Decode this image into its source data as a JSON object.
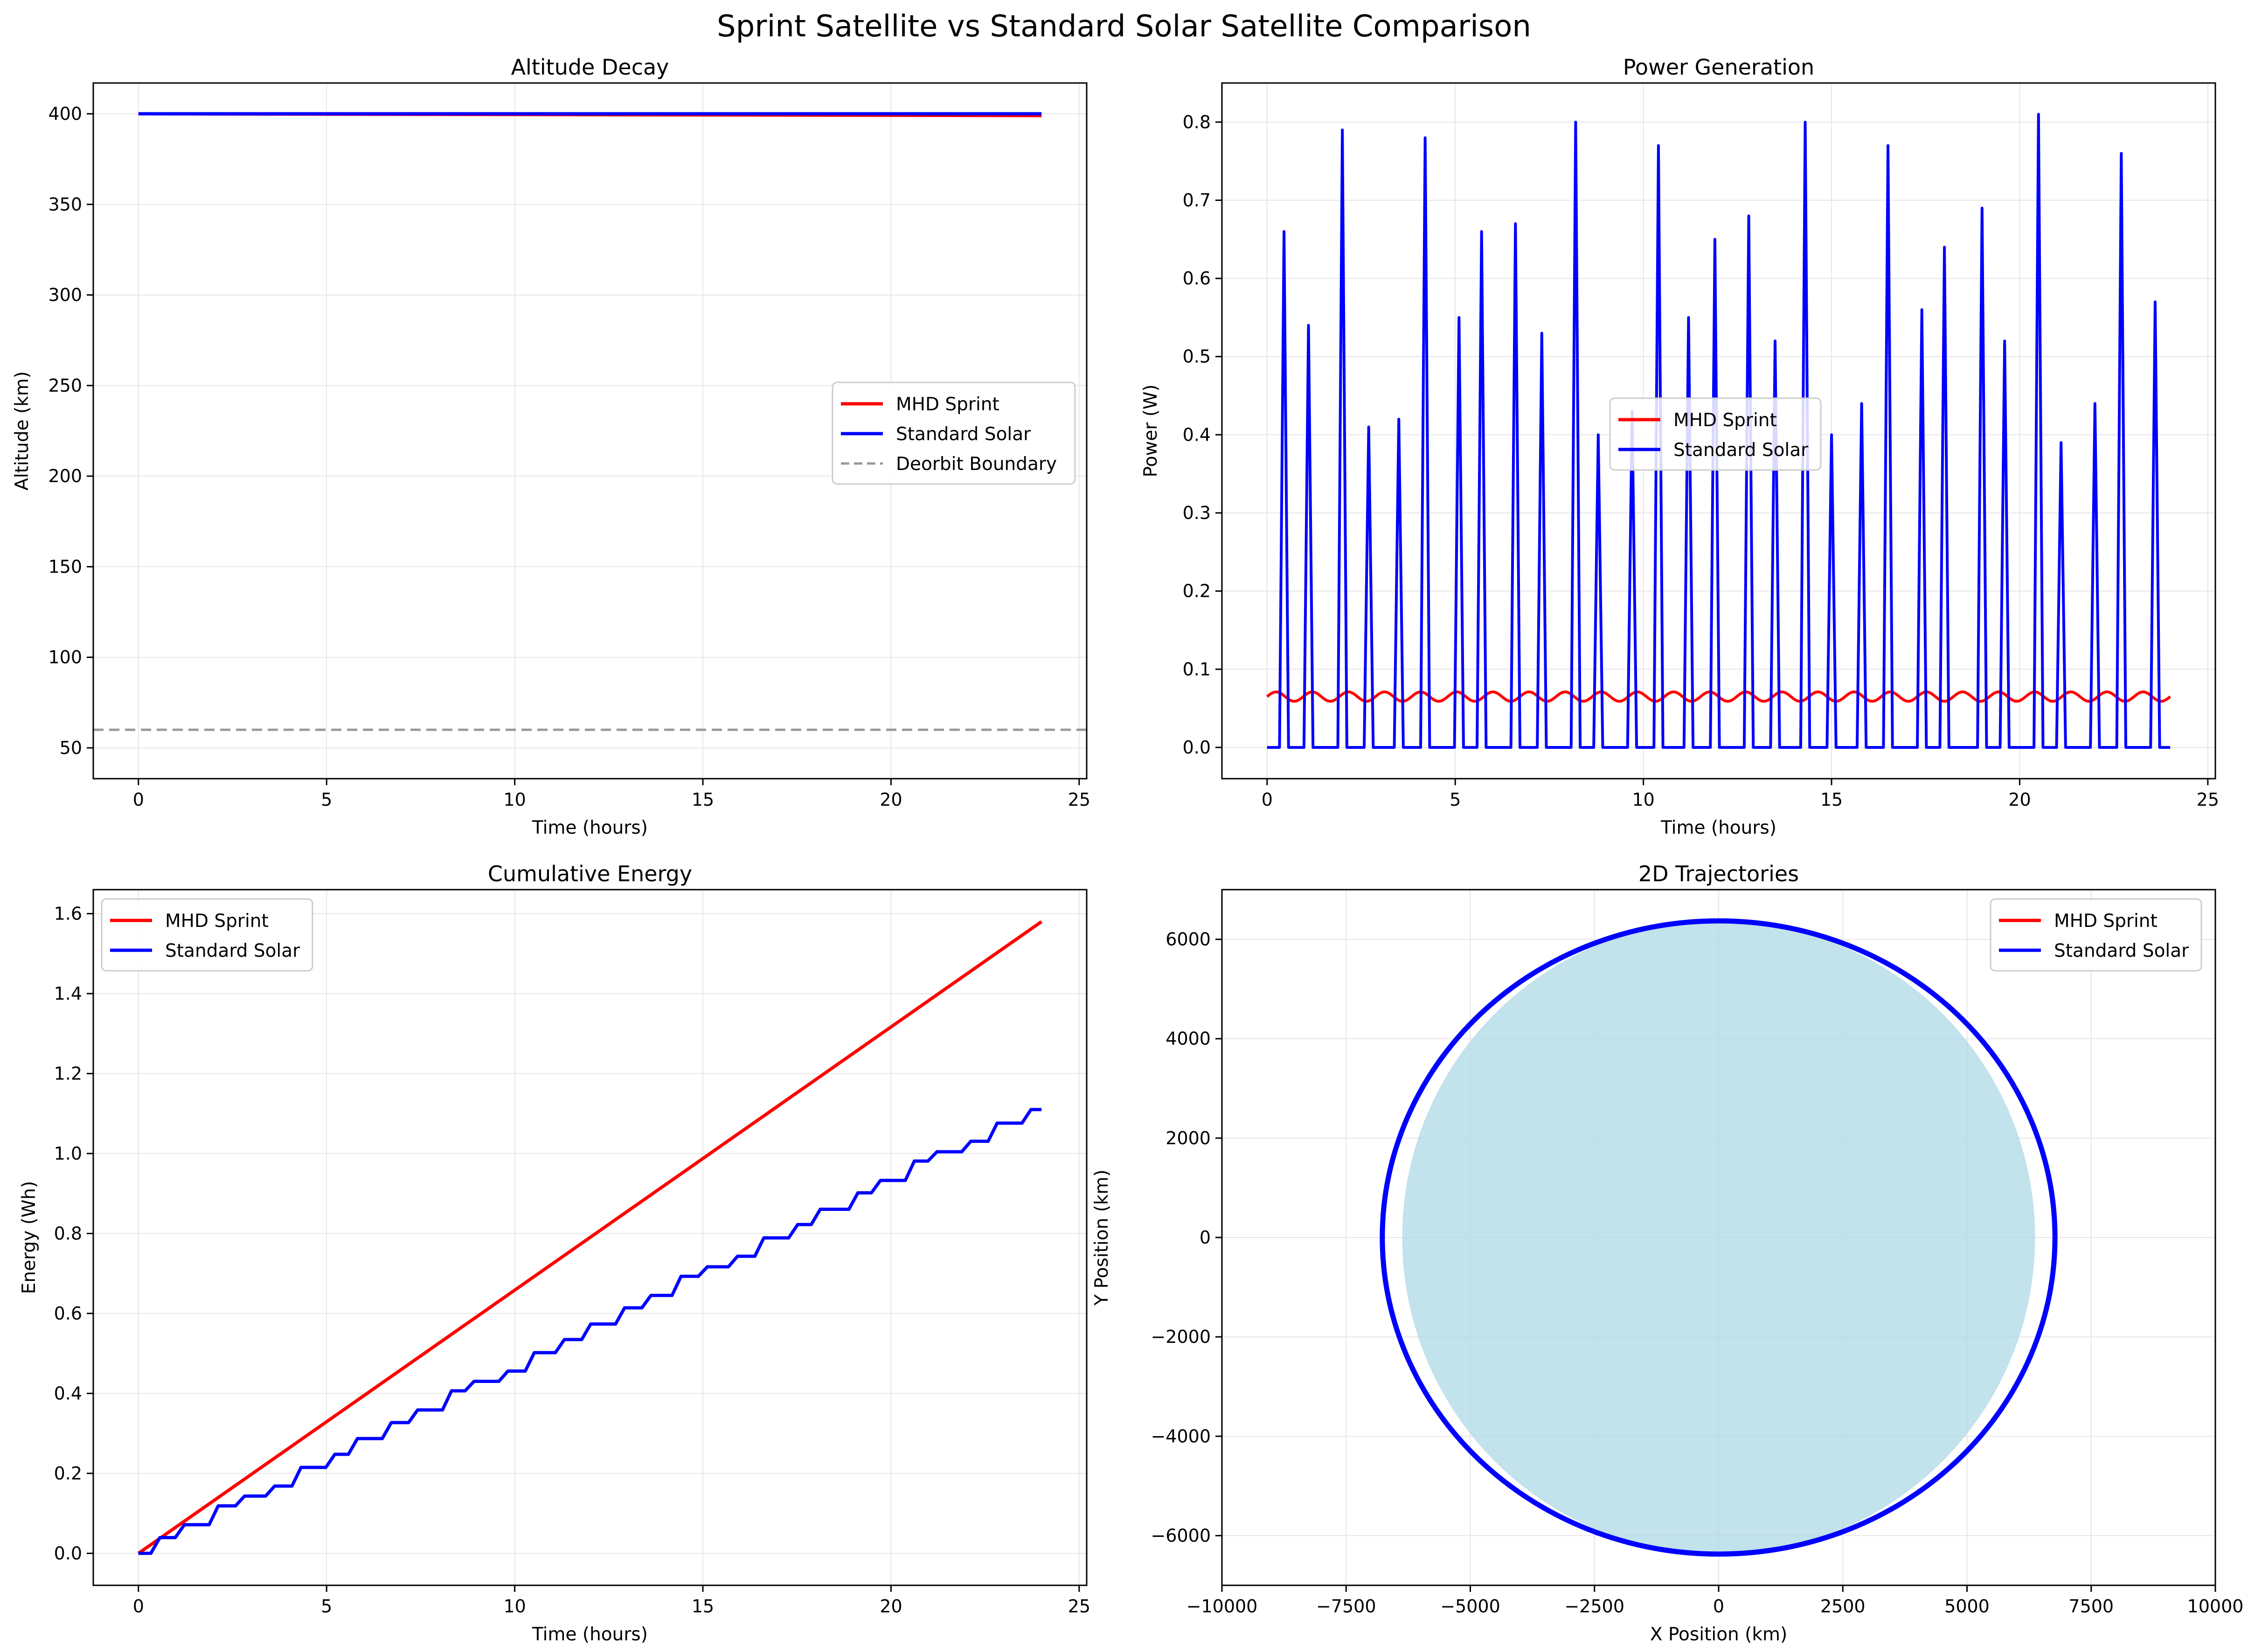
{
  "figure": {
    "suptitle": "Sprint Satellite vs Standard Solar Satellite Comparison"
  },
  "colors": {
    "mhd": "#ff0000",
    "solar": "#0000ff",
    "deorbit": "#999999",
    "earth": "#add8e6",
    "grid": "#e6e6e6"
  },
  "chart_data": [
    {
      "id": "altitude",
      "type": "line",
      "title": "Altitude Decay",
      "xlabel": "Time (hours)",
      "ylabel": "Altitude (km)",
      "xlim": [
        -1.2,
        25.2
      ],
      "ylim": [
        33,
        417
      ],
      "xticks": [
        0,
        5,
        10,
        15,
        20,
        25
      ],
      "yticks": [
        50,
        100,
        150,
        200,
        250,
        300,
        350,
        400
      ],
      "grid": true,
      "legend_position": "center-right",
      "series": [
        {
          "name": "MHD Sprint",
          "color": "#ff0000",
          "style": "solid",
          "x": [
            0,
            24
          ],
          "y": [
            400,
            399
          ]
        },
        {
          "name": "Standard Solar",
          "color": "#0000ff",
          "style": "solid",
          "x": [
            0,
            24
          ],
          "y": [
            400,
            400
          ]
        },
        {
          "name": "Deorbit Boundary",
          "color": "#999999",
          "style": "dashed",
          "x": [
            -1.2,
            25.2
          ],
          "y": [
            60,
            60
          ]
        }
      ]
    },
    {
      "id": "power",
      "type": "line",
      "title": "Power Generation",
      "xlabel": "Time (hours)",
      "ylabel": "Power (W)",
      "xlim": [
        -1.2,
        25.2
      ],
      "ylim": [
        -0.04,
        0.85
      ],
      "xticks": [
        0,
        5,
        10,
        15,
        20,
        25
      ],
      "yticks": [
        0.0,
        0.1,
        0.2,
        0.3,
        0.4,
        0.5,
        0.6,
        0.7,
        0.8
      ],
      "grid": true,
      "legend_position": "center",
      "mhd_power": {
        "base": 0.065,
        "amplitude": 0.006,
        "cycles": 25
      },
      "solar_peaks": [
        [
          0.45,
          0.66
        ],
        [
          1.1,
          0.54
        ],
        [
          2.0,
          0.79
        ],
        [
          2.7,
          0.41
        ],
        [
          3.5,
          0.42
        ],
        [
          4.2,
          0.78
        ],
        [
          5.1,
          0.55
        ],
        [
          5.7,
          0.66
        ],
        [
          6.6,
          0.67
        ],
        [
          7.3,
          0.53
        ],
        [
          8.2,
          0.8
        ],
        [
          8.8,
          0.4
        ],
        [
          9.7,
          0.43
        ],
        [
          10.4,
          0.77
        ],
        [
          11.2,
          0.55
        ],
        [
          11.9,
          0.65
        ],
        [
          12.8,
          0.68
        ],
        [
          13.5,
          0.52
        ],
        [
          14.3,
          0.8
        ],
        [
          15.0,
          0.4
        ],
        [
          15.8,
          0.44
        ],
        [
          16.5,
          0.77
        ],
        [
          17.4,
          0.56
        ],
        [
          18.0,
          0.64
        ],
        [
          19.0,
          0.69
        ],
        [
          19.6,
          0.52
        ],
        [
          20.5,
          0.81
        ],
        [
          21.1,
          0.39
        ],
        [
          22.0,
          0.44
        ],
        [
          22.7,
          0.76
        ],
        [
          23.6,
          0.57
        ]
      ],
      "series": [
        {
          "name": "MHD Sprint",
          "color": "#ff0000"
        },
        {
          "name": "Standard Solar",
          "color": "#0000ff"
        }
      ]
    },
    {
      "id": "energy",
      "type": "line",
      "title": "Cumulative Energy",
      "xlabel": "Time (hours)",
      "ylabel": "Energy (Wh)",
      "xlim": [
        -1.2,
        25.2
      ],
      "ylim": [
        -0.08,
        1.66
      ],
      "xticks": [
        0,
        5,
        10,
        15,
        20,
        25
      ],
      "yticks": [
        0.0,
        0.2,
        0.4,
        0.6,
        0.8,
        1.0,
        1.2,
        1.4,
        1.6
      ],
      "grid": true,
      "legend_position": "upper-left",
      "series": [
        {
          "name": "MHD Sprint",
          "color": "#ff0000",
          "x": [
            0,
            24
          ],
          "y": [
            0,
            1.58
          ]
        },
        {
          "name": "Standard Solar",
          "color": "#0000ff",
          "end_value": 1.11
        }
      ]
    },
    {
      "id": "trajectory",
      "type": "line",
      "title": "2D Trajectories",
      "xlabel": "X Position (km)",
      "ylabel": "Y Position (km)",
      "xlim": [
        -10000,
        10000
      ],
      "ylim": [
        -7000,
        7000
      ],
      "xticks": [
        -10000,
        -7500,
        -5000,
        -2500,
        0,
        2500,
        5000,
        7500,
        10000
      ],
      "xtick_labels": [
        "−10000",
        "−7500",
        "−5000",
        "−2500",
        "0",
        "2500",
        "5000",
        "7500",
        "10000"
      ],
      "yticks": [
        -6000,
        -4000,
        -2000,
        0,
        2000,
        4000,
        6000
      ],
      "ytick_labels": [
        "−6000",
        "−4000",
        "−2000",
        "0",
        "2000",
        "4000",
        "6000"
      ],
      "grid": true,
      "legend_position": "upper-right",
      "earth_radius": 6371,
      "orbit_rx": 6771,
      "orbit_ry": 6371,
      "series": [
        {
          "name": "MHD Sprint",
          "color": "#ff0000"
        },
        {
          "name": "Standard Solar",
          "color": "#0000ff"
        }
      ]
    }
  ]
}
